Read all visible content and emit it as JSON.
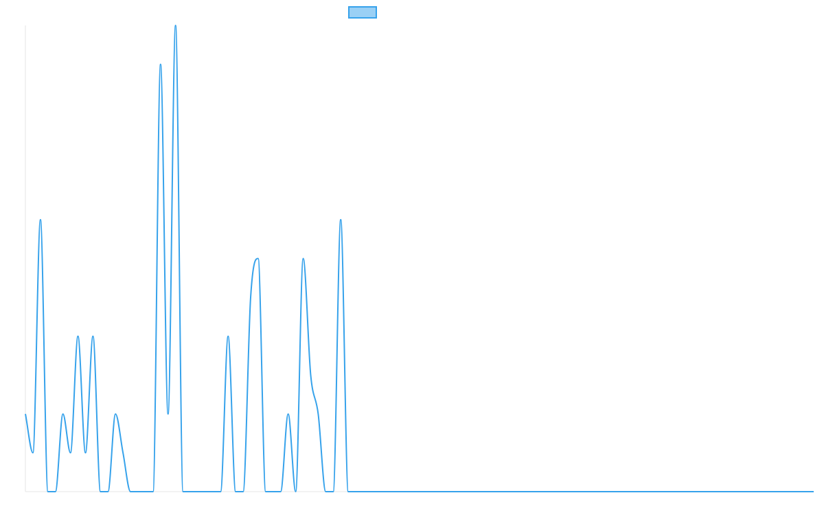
{
  "colors": {
    "series_line": "#36a2eb",
    "legend_fill": "#9ad0f5",
    "axis": "#e5e5e5"
  },
  "chart_data": {
    "type": "line",
    "title": "",
    "xlabel": "",
    "ylabel": "",
    "legend": "top-center",
    "grid": false,
    "show_tick_labels": false,
    "x": [
      0,
      1,
      2,
      3,
      4,
      5,
      6,
      7,
      8,
      9,
      10,
      11,
      12,
      13,
      14,
      15,
      16,
      17,
      18,
      19,
      20,
      21,
      22,
      23,
      24,
      25,
      26,
      27,
      28,
      29,
      30,
      31,
      32,
      33,
      34,
      35,
      36,
      37,
      38,
      39,
      40,
      41,
      42,
      43,
      44,
      45,
      46,
      47,
      48,
      49,
      50,
      51,
      52,
      53,
      54,
      55,
      56,
      57,
      58,
      59,
      60,
      61,
      62,
      63,
      64,
      65,
      66,
      67,
      68,
      69,
      70,
      71,
      72,
      73,
      74,
      75,
      76,
      77,
      78,
      79,
      80,
      81,
      82,
      83,
      84,
      85,
      86,
      87,
      88,
      89,
      90,
      91,
      92,
      93,
      94,
      95,
      96,
      97,
      98,
      99,
      100,
      101,
      102,
      103,
      104,
      105
    ],
    "ylim": [
      0,
      12
    ],
    "series": [
      {
        "name": "",
        "values": [
          2,
          1,
          7,
          0,
          0,
          2,
          1,
          4,
          1,
          4,
          0,
          0,
          2,
          1,
          0,
          0,
          0,
          0,
          11,
          2,
          12,
          0,
          0,
          0,
          0,
          0,
          0,
          4,
          0,
          0,
          5,
          6,
          0,
          0,
          0,
          2,
          0,
          6,
          3,
          2,
          0,
          0,
          7,
          0,
          0,
          0,
          0,
          0,
          0,
          0,
          0,
          0,
          0,
          0,
          0,
          0,
          0,
          0,
          0,
          0,
          0,
          0,
          0,
          0,
          0,
          0,
          0,
          0,
          0,
          0,
          0,
          0,
          0,
          0,
          0,
          0,
          0,
          0,
          0,
          0,
          0,
          0,
          0,
          0,
          0,
          0,
          0,
          0,
          0,
          0,
          0,
          0,
          0,
          0,
          0,
          0,
          0,
          0,
          0,
          0,
          0,
          0,
          0,
          0,
          0,
          0
        ]
      }
    ]
  }
}
